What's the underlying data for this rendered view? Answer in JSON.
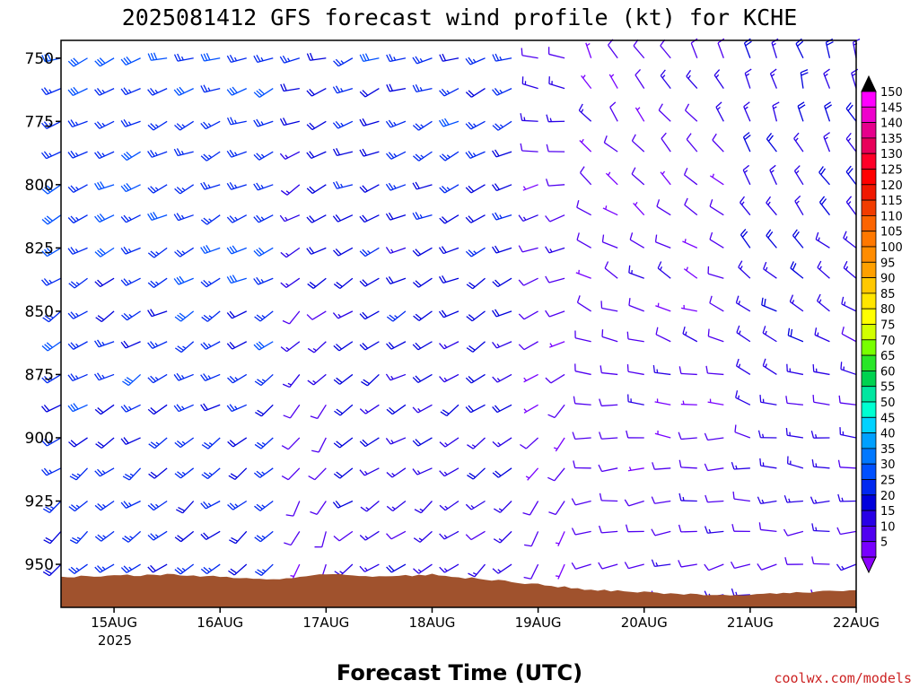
{
  "chart_data": {
    "type": "wind-barbs",
    "title": "2025081412 GFS forecast wind profile (kt) for KCHE",
    "xlabel": "Forecast Time (UTC)",
    "credit": "coolwx.com/models",
    "x_ticks": [
      "15AUG",
      "16AUG",
      "17AUG",
      "18AUG",
      "19AUG",
      "20AUG",
      "21AUG",
      "22AUG"
    ],
    "x_year": "2025",
    "xlim_days": [
      14.5,
      22.0
    ],
    "y_ticks": [
      "750",
      "775",
      "800",
      "825",
      "850",
      "875",
      "900",
      "925",
      "950"
    ],
    "ylim": [
      743,
      967
    ],
    "time_step_hours": 6,
    "levels": [
      750,
      762,
      775,
      787,
      800,
      812,
      825,
      837,
      850,
      862,
      875,
      887,
      900,
      912,
      925,
      937,
      950,
      962
    ],
    "colorbar": {
      "labels": [
        "150",
        "145",
        "140",
        "135",
        "130",
        "125",
        "120",
        "115",
        "110",
        "105",
        "100",
        "95",
        "90",
        "85",
        "80",
        "75",
        "70",
        "65",
        "60",
        "55",
        "50",
        "45",
        "40",
        "35",
        "30",
        "25",
        "20",
        "15",
        "10",
        "5"
      ],
      "colors": [
        "#ff00ff",
        "#ee00cc",
        "#e6008c",
        "#e8005a",
        "#ff0028",
        "#ff0000",
        "#f01800",
        "#f23c00",
        "#fc6400",
        "#ff7800",
        "#ff8c00",
        "#ffa000",
        "#ffc800",
        "#ffe600",
        "#ffff00",
        "#d2ff00",
        "#78ff00",
        "#28e628",
        "#00d250",
        "#00e6a0",
        "#00ffd2",
        "#00d2ff",
        "#00a0ff",
        "#0078ff",
        "#0050ff",
        "#0028f0",
        "#0000dc",
        "#2800e6",
        "#5000f0",
        "#7800ff"
      ],
      "low_color": "#8c00ff",
      "high_color": "#000000"
    },
    "ground_color": "#a0522d",
    "ground_pressure": [
      {
        "day": 14.5,
        "p": 955
      },
      {
        "day": 15.5,
        "p": 954
      },
      {
        "day": 16.0,
        "p": 955
      },
      {
        "day": 16.5,
        "p": 956
      },
      {
        "day": 17.0,
        "p": 954
      },
      {
        "day": 17.5,
        "p": 955
      },
      {
        "day": 18.0,
        "p": 954
      },
      {
        "day": 18.5,
        "p": 956
      },
      {
        "day": 19.0,
        "p": 958
      },
      {
        "day": 19.5,
        "p": 960
      },
      {
        "day": 20.0,
        "p": 961
      },
      {
        "day": 20.5,
        "p": 962
      },
      {
        "day": 21.0,
        "p": 962
      },
      {
        "day": 21.5,
        "p": 961
      },
      {
        "day": 22.0,
        "p": 960
      }
    ],
    "wind_regimes": [
      {
        "from_day": 14.5,
        "to_day": 16.6,
        "dir_upper": 250,
        "dir_lower": 230,
        "spd_upper": 28,
        "spd_lower": 22
      },
      {
        "from_day": 16.6,
        "to_day": 17.2,
        "dir_upper": 255,
        "dir_lower": 200,
        "spd_upper": 22,
        "spd_lower": 8
      },
      {
        "from_day": 17.2,
        "to_day": 18.8,
        "dir_upper": 250,
        "dir_lower": 230,
        "spd_upper": 25,
        "spd_lower": 14
      },
      {
        "from_day": 18.8,
        "to_day": 19.4,
        "dir_upper": 280,
        "dir_lower": 200,
        "spd_upper": 12,
        "spd_lower": 6
      },
      {
        "from_day": 19.4,
        "to_day": 20.8,
        "dir_upper": 330,
        "dir_lower": 250,
        "spd_upper": 10,
        "spd_lower": 10
      },
      {
        "from_day": 20.8,
        "to_day": 22.0,
        "dir_upper": 345,
        "dir_lower": 255,
        "spd_upper": 18,
        "spd_lower": 12
      }
    ]
  }
}
